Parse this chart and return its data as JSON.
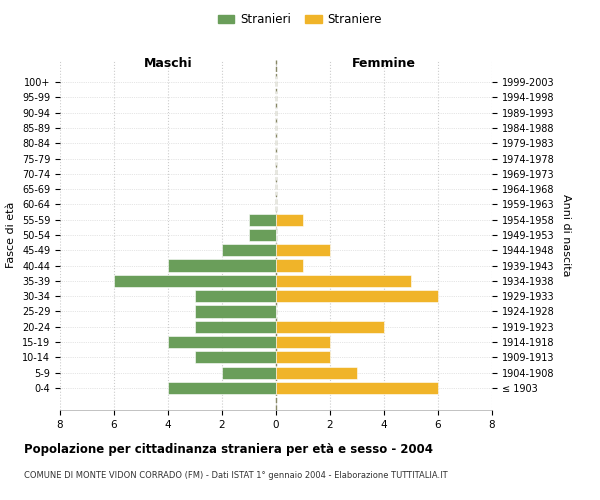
{
  "age_groups": [
    "100+",
    "95-99",
    "90-94",
    "85-89",
    "80-84",
    "75-79",
    "70-74",
    "65-69",
    "60-64",
    "55-59",
    "50-54",
    "45-49",
    "40-44",
    "35-39",
    "30-34",
    "25-29",
    "20-24",
    "15-19",
    "10-14",
    "5-9",
    "0-4"
  ],
  "birth_years": [
    "≤ 1903",
    "1904-1908",
    "1909-1913",
    "1914-1918",
    "1919-1923",
    "1924-1928",
    "1929-1933",
    "1934-1938",
    "1939-1943",
    "1944-1948",
    "1949-1953",
    "1954-1958",
    "1959-1963",
    "1964-1968",
    "1969-1973",
    "1974-1978",
    "1979-1983",
    "1984-1988",
    "1989-1993",
    "1994-1998",
    "1999-2003"
  ],
  "males": [
    0,
    0,
    0,
    0,
    0,
    0,
    0,
    0,
    0,
    1,
    1,
    2,
    4,
    6,
    3,
    3,
    3,
    4,
    3,
    2,
    4
  ],
  "females": [
    0,
    0,
    0,
    0,
    0,
    0,
    0,
    0,
    0,
    1,
    0,
    2,
    1,
    5,
    6,
    0,
    4,
    2,
    2,
    3,
    6
  ],
  "male_color": "#6a9e5a",
  "female_color": "#f0b429",
  "bg_color": "#ffffff",
  "grid_color": "#cccccc",
  "center_line_color": "#888866",
  "title": "Popolazione per cittadinanza straniera per età e sesso - 2004",
  "subtitle": "COMUNE DI MONTE VIDON CORRADO (FM) - Dati ISTAT 1° gennaio 2004 - Elaborazione TUTTITALIA.IT",
  "xlabel_left": "Maschi",
  "xlabel_right": "Femmine",
  "ylabel_left": "Fasce di età",
  "ylabel_right": "Anni di nascita",
  "legend_males": "Stranieri",
  "legend_females": "Straniere",
  "xlim": 8,
  "bar_height": 0.8
}
